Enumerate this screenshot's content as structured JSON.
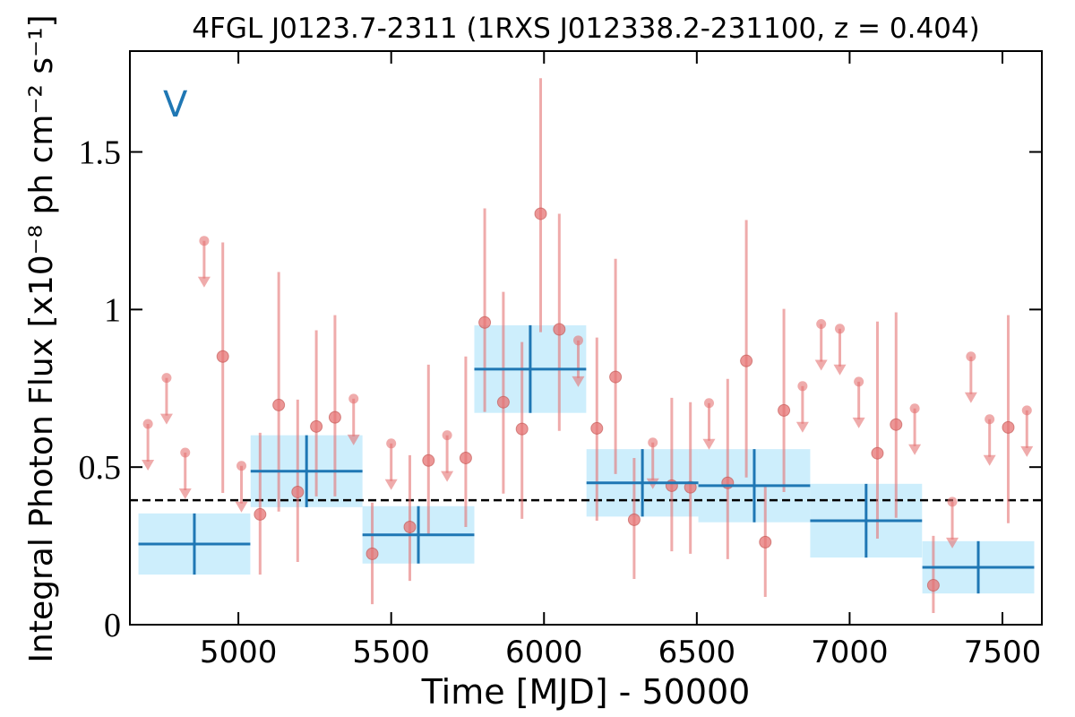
{
  "chart_data": {
    "type": "lightcurve",
    "title": "4FGL J0123.7-2311 (1RXS J012338.2-231100, z = 0.404)",
    "xlabel": "Time [MJD] - 50000",
    "ylabel": "Integral Photon Flux [x10⁻⁸ ph cm⁻² s⁻¹]",
    "annotation": "V",
    "annotation_color": "#1f77b4",
    "xlim": [
      4645,
      7629
    ],
    "ylim": [
      0,
      1.82
    ],
    "xticks": [
      5000,
      5500,
      6000,
      6500,
      7000,
      7500
    ],
    "yticks": [
      0,
      0.5,
      1,
      1.5
    ],
    "reference_line": 0.395,
    "bins": {
      "color": "#1f77b4",
      "box_color": "#cdeefc",
      "x": [
        4856,
        5223,
        5589,
        5955,
        6322,
        6688,
        7054,
        7421
      ],
      "xerr": [
        183,
        183,
        183,
        183,
        183,
        183,
        183,
        183
      ],
      "values": [
        0.256,
        0.487,
        0.285,
        0.811,
        0.45,
        0.441,
        0.33,
        0.182
      ],
      "yerr": [
        0.097,
        0.114,
        0.091,
        0.139,
        0.107,
        0.116,
        0.117,
        0.083
      ]
    },
    "detections": {
      "color": "#e57373",
      "x": [
        4949,
        5071,
        5132,
        5194,
        5255,
        5316,
        5438,
        5561,
        5622,
        5744,
        5806,
        5867,
        5928,
        5989,
        6050,
        6173,
        6234,
        6295,
        6418,
        6479,
        6601,
        6662,
        6724,
        6785,
        7091,
        7152,
        7274,
        7519
      ],
      "values": [
        0.851,
        0.35,
        0.697,
        0.421,
        0.629,
        0.658,
        0.225,
        0.31,
        0.521,
        0.529,
        0.959,
        0.706,
        0.621,
        1.304,
        0.937,
        0.623,
        0.786,
        0.333,
        0.441,
        0.436,
        0.45,
        0.837,
        0.262,
        0.68,
        0.544,
        0.635,
        0.125,
        0.626
      ],
      "lower": [
        0.418,
        0.159,
        0.359,
        0.199,
        0.407,
        0.407,
        0.065,
        0.139,
        0.288,
        0.31,
        0.675,
        0.416,
        0.336,
        0.928,
        0.615,
        0.33,
        0.478,
        0.145,
        0.233,
        0.225,
        0.208,
        0.467,
        0.088,
        0.421,
        0.273,
        0.339,
        0.037,
        0.322
      ],
      "upper": [
        1.213,
        0.609,
        1.119,
        0.714,
        0.934,
        0.982,
        0.387,
        0.538,
        0.825,
        0.851,
        1.321,
        1.056,
        0.897,
        1.734,
        1.304,
        0.911,
        1.161,
        0.529,
        0.72,
        0.706,
        0.78,
        1.284,
        0.441,
        1.002,
        0.962,
        0.991,
        0.282,
        0.982
      ]
    },
    "upper_limits": {
      "color": "#e57373",
      "x": [
        4704,
        4765,
        4826,
        4888,
        5010,
        5377,
        5500,
        5683,
        6112,
        6356,
        6540,
        6846,
        6907,
        6968,
        7030,
        7213,
        7336,
        7397,
        7458,
        7580
      ],
      "values": [
        0.637,
        0.783,
        0.546,
        1.218,
        0.504,
        0.717,
        0.575,
        0.601,
        0.902,
        0.578,
        0.703,
        0.757,
        0.954,
        0.939,
        0.771,
        0.686,
        0.39,
        0.851,
        0.652,
        0.68
      ]
    }
  }
}
